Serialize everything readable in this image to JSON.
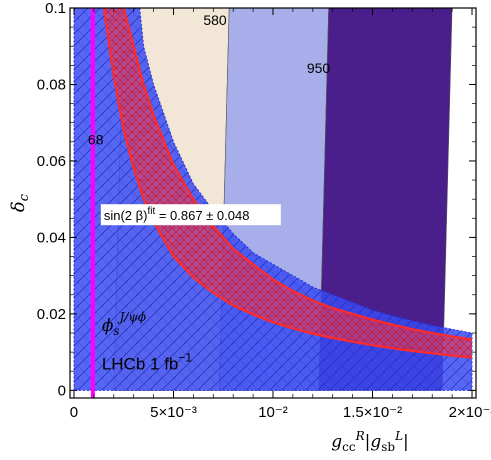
{
  "chart_data": {
    "type": "area",
    "xlim": [
      -0.0002,
      0.0202
    ],
    "ylim": [
      -0.002,
      0.1
    ],
    "x_ticks": [
      {
        "value": 0,
        "label": "0"
      },
      {
        "value": 0.005,
        "label": "5×10⁻³"
      },
      {
        "value": 0.01,
        "label": "10⁻²"
      },
      {
        "value": 0.015,
        "label": "1.5×10⁻²"
      },
      {
        "value": 0.02,
        "label": "2×10⁻²"
      }
    ],
    "y_ticks": [
      {
        "value": 0,
        "label": "0"
      },
      {
        "value": 0.02,
        "label": "0.02"
      },
      {
        "value": 0.04,
        "label": "0.04"
      },
      {
        "value": 0.06,
        "label": "0.06"
      },
      {
        "value": 0.08,
        "label": "0.08"
      },
      {
        "value": 0.1,
        "label": "0.1"
      }
    ],
    "xlabel": {
      "main": "g",
      "sub1": "cc",
      "sup1": "R",
      "mid": "|g",
      "sub2": "sb",
      "sup2": "L",
      "end": "|"
    },
    "ylabel": {
      "main": "δ",
      "sub": "c"
    },
    "regions": [
      {
        "name": "580",
        "color": "#f2e6d6",
        "corners": [
          [
            0.0025,
            0.1
          ],
          [
            0.0078,
            0.1
          ],
          [
            0.0073,
            0.0
          ],
          [
            0.002,
            0.0
          ]
        ]
      },
      {
        "name": "950",
        "color": "#a7aee9",
        "corners": [
          [
            0.0078,
            0.1
          ],
          [
            0.0128,
            0.1
          ],
          [
            0.0123,
            0.0
          ],
          [
            0.0073,
            0.0
          ]
        ]
      },
      {
        "name": "",
        "color": "#4a1f8c",
        "corners": [
          [
            0.0128,
            0.1
          ],
          [
            0.019,
            0.1
          ],
          [
            0.0185,
            0.0
          ],
          [
            0.0123,
            0.0
          ]
        ]
      }
    ],
    "contour_labels": [
      {
        "text": "580",
        "x": 0.0065,
        "y": 0.0955
      },
      {
        "text": "950",
        "x": 0.0117,
        "y": 0.083
      },
      {
        "text": "68",
        "x": 0.0007,
        "y": 0.0643
      }
    ],
    "phi_s_band": {
      "label_main": "ϕ",
      "label_sub": "s",
      "label_sup": "J/ψϕ",
      "label_x": 0.0014,
      "label_y": 0.0155,
      "color": "#3b4bf2",
      "upper_curve": [
        [
          0.0,
          0.1
        ],
        [
          0.0033,
          0.1
        ],
        [
          0.0035,
          0.09
        ],
        [
          0.004,
          0.08
        ],
        [
          0.005,
          0.065
        ],
        [
          0.006,
          0.054
        ],
        [
          0.007,
          0.047
        ],
        [
          0.008,
          0.041
        ],
        [
          0.009,
          0.036
        ],
        [
          0.01,
          0.033
        ],
        [
          0.011,
          0.03
        ],
        [
          0.012,
          0.027
        ],
        [
          0.013,
          0.025
        ],
        [
          0.014,
          0.023
        ],
        [
          0.015,
          0.021
        ],
        [
          0.016,
          0.0195
        ],
        [
          0.017,
          0.0182
        ],
        [
          0.018,
          0.017
        ],
        [
          0.019,
          0.016
        ],
        [
          0.02,
          0.015
        ]
      ],
      "x_max": 0.02
    },
    "lhcb_band": {
      "label": "LHCb 1 fb",
      "label_sup": "−1",
      "label_x": 0.0014,
      "label_y": 0.0055,
      "color": "#ff00ff",
      "x_center": 0.00095
    },
    "sin2beta_band": {
      "label": "sin(2 β)",
      "label_sup": "fit",
      "label_value": " = 0.867 ± 0.048",
      "label_x": 0.0015,
      "label_y": 0.0445,
      "color": "#ff2a2a",
      "upper": [
        [
          0.0025,
          0.1
        ],
        [
          0.003,
          0.09
        ],
        [
          0.0035,
          0.08
        ],
        [
          0.004,
          0.072
        ],
        [
          0.005,
          0.059
        ],
        [
          0.006,
          0.05
        ],
        [
          0.007,
          0.043
        ],
        [
          0.008,
          0.037
        ],
        [
          0.009,
          0.033
        ],
        [
          0.01,
          0.029
        ],
        [
          0.011,
          0.026
        ],
        [
          0.012,
          0.0235
        ],
        [
          0.013,
          0.0215
        ],
        [
          0.014,
          0.02
        ],
        [
          0.015,
          0.0185
        ],
        [
          0.016,
          0.0172
        ],
        [
          0.017,
          0.016
        ],
        [
          0.018,
          0.015
        ],
        [
          0.019,
          0.0141
        ],
        [
          0.02,
          0.0133
        ]
      ],
      "lower": [
        [
          0.0015,
          0.1
        ],
        [
          0.002,
          0.082
        ],
        [
          0.0025,
          0.068
        ],
        [
          0.003,
          0.058
        ],
        [
          0.0035,
          0.05
        ],
        [
          0.004,
          0.044
        ],
        [
          0.005,
          0.035
        ],
        [
          0.006,
          0.0295
        ],
        [
          0.007,
          0.0255
        ],
        [
          0.008,
          0.0222
        ],
        [
          0.009,
          0.0198
        ],
        [
          0.01,
          0.0178
        ],
        [
          0.011,
          0.0162
        ],
        [
          0.012,
          0.0148
        ],
        [
          0.013,
          0.0137
        ],
        [
          0.014,
          0.0127
        ],
        [
          0.015,
          0.0118
        ],
        [
          0.016,
          0.011
        ],
        [
          0.017,
          0.0103
        ],
        [
          0.018,
          0.0097
        ],
        [
          0.019,
          0.0091
        ],
        [
          0.02,
          0.0086
        ]
      ]
    }
  }
}
